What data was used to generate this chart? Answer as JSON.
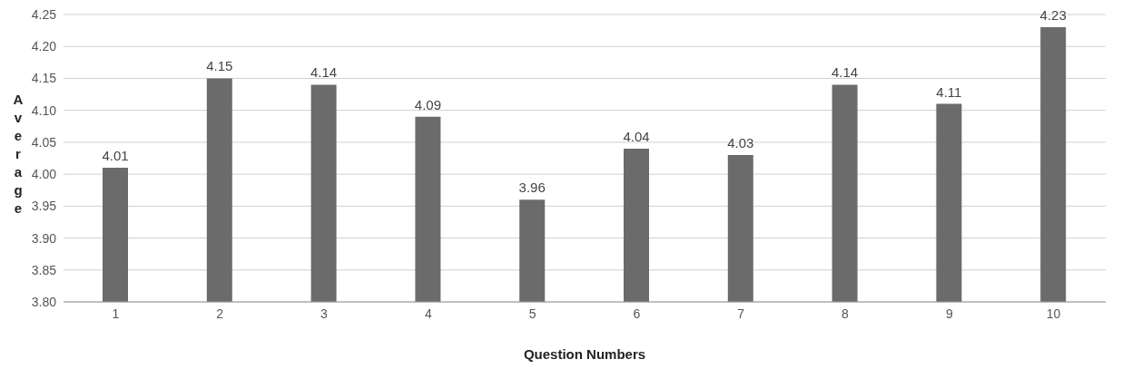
{
  "chart_data": {
    "type": "bar",
    "xlabel": "Question Numbers",
    "ylabel": "Average",
    "categories": [
      "1",
      "2",
      "3",
      "4",
      "5",
      "6",
      "7",
      "8",
      "9",
      "10"
    ],
    "values": [
      4.01,
      4.15,
      4.14,
      4.09,
      3.96,
      4.04,
      4.03,
      4.14,
      4.11,
      4.23
    ],
    "color": "#6b6b6b",
    "data_labels": true,
    "grid": "y",
    "ylim": [
      3.8,
      4.25
    ],
    "yticks": [
      {
        "value": 3.8,
        "label": "3.80"
      },
      {
        "value": 3.85,
        "label": "3.85"
      },
      {
        "value": 3.9,
        "label": "3.90"
      },
      {
        "value": 3.95,
        "label": "3.95"
      },
      {
        "value": 4.0,
        "label": "4.00"
      },
      {
        "value": 4.05,
        "label": "4.05"
      },
      {
        "value": 4.1,
        "label": "4.10"
      },
      {
        "value": 4.15,
        "label": "4.15"
      },
      {
        "value": 4.2,
        "label": "4.20"
      },
      {
        "value": 4.25,
        "label": "4.25"
      }
    ]
  }
}
